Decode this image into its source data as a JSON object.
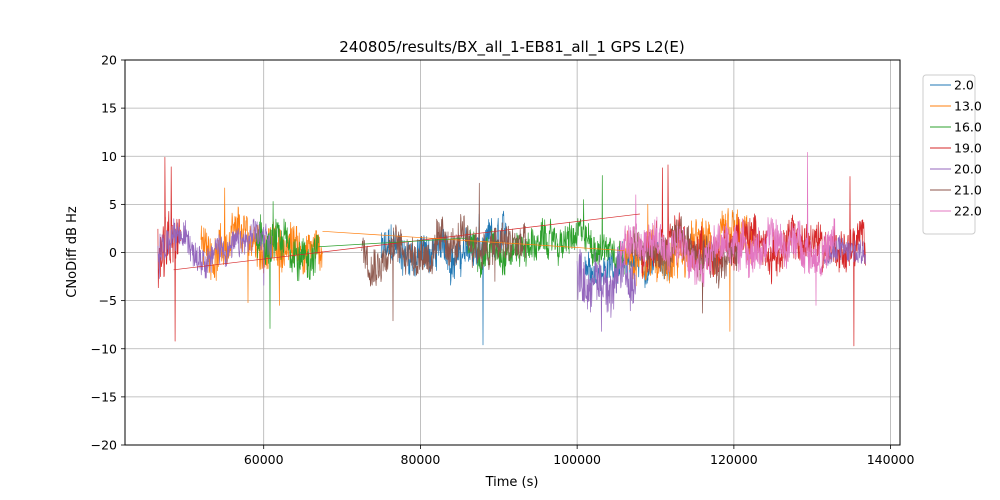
{
  "chart_data": {
    "type": "line",
    "title": "240805/results/BX_all_1-EB81_all_1 GPS L2(E)",
    "xlabel": "Time (s)",
    "ylabel": "CNoDiff dB Hz",
    "xlim": [
      42300,
      141200
    ],
    "ylim": [
      -20,
      20
    ],
    "xticks": [
      60000,
      80000,
      100000,
      120000,
      140000
    ],
    "xtick_labels": [
      "60000",
      "80000",
      "100000",
      "120000",
      "140000"
    ],
    "yticks": [
      -20,
      -15,
      -10,
      -5,
      0,
      5,
      10,
      15,
      20
    ],
    "ytick_labels": [
      "−20",
      "−15",
      "−10",
      "−5",
      "0",
      "5",
      "10",
      "15",
      "20"
    ],
    "grid": true,
    "legend_position": "outside-right-top",
    "series": [
      {
        "name": "2.0",
        "color": "#1f77b4",
        "segments": [
          {
            "x0": 75000,
            "x1": 91000,
            "level": 0.0,
            "amp": 2.6,
            "spikes": [
              [
                88000,
                -9.6
              ],
              [
                87500,
                4.0
              ]
            ]
          },
          {
            "x0": 101000,
            "x1": 112000,
            "level": -1.0,
            "amp": 2.2,
            "spikes": []
          }
        ]
      },
      {
        "name": "13.0",
        "color": "#ff7f0e",
        "segments": [
          {
            "x0": 52000,
            "x1": 67500,
            "level": 0.5,
            "amp": 2.8,
            "spikes": [
              [
                55000,
                6.7
              ],
              [
                58000,
                -5.2
              ],
              [
                62000,
                -5.5
              ]
            ]
          },
          {
            "x0": 106000,
            "x1": 122500,
            "level": 0.0,
            "amp": 3.0,
            "spikes": [
              [
                119500,
                -8.2
              ],
              [
                109000,
                5.0
              ]
            ]
          }
        ]
      },
      {
        "name": "16.0",
        "color": "#2ca02c",
        "segments": [
          {
            "x0": 59000,
            "x1": 67000,
            "level": 0.0,
            "amp": 2.8,
            "spikes": [
              [
                60800,
                -7.9
              ],
              [
                61200,
                5.3
              ]
            ]
          },
          {
            "x0": 86000,
            "x1": 106000,
            "level": 1.0,
            "amp": 2.2,
            "spikes": [
              [
                103200,
                8.0
              ],
              [
                100800,
                5.5
              ]
            ]
          }
        ]
      },
      {
        "name": "19.0",
        "color": "#d62728",
        "segments": [
          {
            "x0": 46500,
            "x1": 49500,
            "level": 0.0,
            "amp": 4.0,
            "spikes": [
              [
                47400,
                9.9
              ],
              [
                48700,
                -9.2
              ],
              [
                48200,
                8.9
              ]
            ]
          },
          {
            "x0": 108000,
            "x1": 136800,
            "level": 0.8,
            "amp": 2.8,
            "spikes": [
              [
                111600,
                9.1
              ],
              [
                110900,
                8.8
              ],
              [
                135300,
                -9.7
              ],
              [
                134800,
                7.9
              ]
            ]
          }
        ]
      },
      {
        "name": "20.0",
        "color": "#9467bd",
        "segments": [
          {
            "x0": 46500,
            "x1": 61000,
            "level": 0.8,
            "amp": 2.0,
            "spikes": [
              [
                46700,
                -2.7
              ],
              [
                60000,
                -3.4
              ]
            ]
          },
          {
            "x0": 100000,
            "x1": 107500,
            "level": -2.5,
            "amp": 3.2,
            "spikes": [
              [
                103100,
                -8.2
              ]
            ]
          },
          {
            "x0": 131500,
            "x1": 136800,
            "level": 0.0,
            "amp": 1.8,
            "spikes": []
          }
        ]
      },
      {
        "name": "21.0",
        "color": "#8c564b",
        "segments": [
          {
            "x0": 72500,
            "x1": 93500,
            "level": 0.5,
            "amp": 2.6,
            "spikes": [
              [
                87500,
                7.2
              ],
              [
                76500,
                -7.1
              ],
              [
                89500,
                -3.0
              ]
            ]
          },
          {
            "x0": 106500,
            "x1": 120500,
            "level": 0.0,
            "amp": 2.6,
            "spikes": [
              [
                116000,
                -6.3
              ]
            ]
          }
        ]
      },
      {
        "name": "22.0",
        "color": "#e377c2",
        "segments": [
          {
            "x0": 105500,
            "x1": 133000,
            "level": 0.8,
            "amp": 2.6,
            "spikes": [
              [
                129400,
                10.4
              ],
              [
                130500,
                -5.5
              ],
              [
                107500,
                6.0
              ]
            ]
          }
        ]
      }
    ],
    "connectors": [
      {
        "series": "19.0",
        "x": [
          48500,
          108000
        ],
        "y": [
          -1.8,
          4.0
        ]
      },
      {
        "series": "13.0",
        "x": [
          67500,
          106000
        ],
        "y": [
          2.2,
          0.2
        ]
      },
      {
        "series": "16.0",
        "x": [
          67000,
          86000
        ],
        "y": [
          0.6,
          1.5
        ]
      }
    ]
  }
}
